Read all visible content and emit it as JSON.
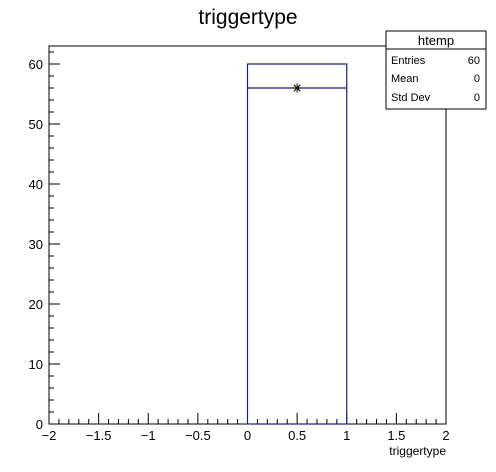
{
  "chart_data": {
    "type": "bar",
    "title": "triggertype",
    "xlabel": "triggertype",
    "ylabel": "",
    "xlim": [
      -2,
      2
    ],
    "ylim": [
      0,
      63
    ],
    "x_ticks": [
      "−2",
      "−1.5",
      "−1",
      "−0.5",
      "0",
      "0.5",
      "1",
      "1.5",
      "2"
    ],
    "y_ticks": [
      "0",
      "10",
      "20",
      "30",
      "40",
      "50",
      "60"
    ],
    "bins": [
      {
        "x_low": 0,
        "x_high": 1,
        "value": 60
      }
    ],
    "overlay_line": {
      "x_low": 0,
      "x_high": 1,
      "value": 56
    },
    "marker": {
      "x": 0.5,
      "y": 56,
      "symbol": "✳"
    },
    "stats_box": {
      "title": "htemp",
      "rows": [
        {
          "label": "Entries",
          "value": "60"
        },
        {
          "label": "Mean",
          "value": "0"
        },
        {
          "label": "Std Dev",
          "value": "0"
        }
      ],
      "placement": "top-right"
    },
    "grid": false,
    "colors": {
      "histogram": "#1c1c8c",
      "axis": "#000000"
    }
  }
}
